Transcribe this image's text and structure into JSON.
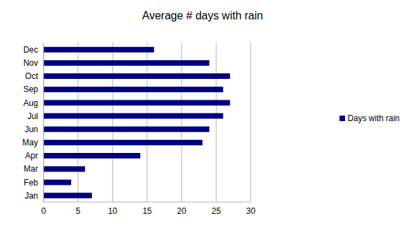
{
  "chart_data": {
    "type": "bar",
    "title": "Average # days with rain",
    "orientation": "horizontal",
    "categories": [
      "Jan",
      "Feb",
      "Mar",
      "Apr",
      "May",
      "Jun",
      "Jul",
      "Aug",
      "Sep",
      "Oct",
      "Nov",
      "Dec"
    ],
    "series": [
      {
        "name": "Days with rain",
        "color": "#000080",
        "values": [
          7,
          4,
          6,
          14,
          23,
          24,
          26,
          27,
          26,
          27,
          24,
          16
        ]
      }
    ],
    "xlim": [
      0,
      30
    ],
    "xticks": [
      0,
      5,
      10,
      15,
      20,
      25,
      30
    ],
    "grid": true,
    "legend": "right"
  }
}
